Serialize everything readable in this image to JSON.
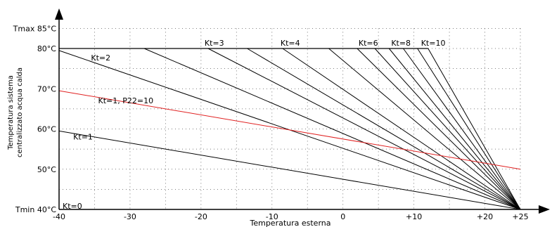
{
  "chart_data": {
    "type": "line",
    "xlabel": "Temperatura esterna",
    "ylabel_lines": [
      "Temperatura sistema",
      "centralizzato acqua calda"
    ],
    "xlim": [
      -40,
      25
    ],
    "ylim": [
      40,
      85
    ],
    "grid": true,
    "x_ticks": [
      {
        "value": -40,
        "label": "-40"
      },
      {
        "value": -30,
        "label": "-30"
      },
      {
        "value": -20,
        "label": "-20"
      },
      {
        "value": -10,
        "label": "-10"
      },
      {
        "value": 0,
        "label": "0"
      },
      {
        "value": 10,
        "label": "+10"
      },
      {
        "value": 20,
        "label": "+20"
      },
      {
        "value": 25,
        "label": "+25"
      }
    ],
    "y_ticks": [
      {
        "value": 40,
        "label": "Tmin 40°C"
      },
      {
        "value": 50,
        "label": "50°C"
      },
      {
        "value": 60,
        "label": "60°C"
      },
      {
        "value": 70,
        "label": "70°C"
      },
      {
        "value": 80,
        "label": "80°C"
      },
      {
        "value": 85,
        "label": "Tmax 85°C"
      }
    ],
    "max_line": {
      "value": 80,
      "x_from": -40,
      "x_to": 12
    },
    "convergence_point": {
      "x": 25,
      "y": 40
    },
    "lines": [
      {
        "kt": 1,
        "x_start": -40,
        "y_start": 59.5,
        "color": "#000000"
      },
      {
        "kt": 2,
        "x_start": -40,
        "y_start": 79.5,
        "color": "#000000"
      },
      {
        "kt": 2.5,
        "x_start": -28,
        "y_start": 80,
        "color": "#000000"
      },
      {
        "kt": 3,
        "x_start": -19,
        "y_start": 80,
        "color": "#000000"
      },
      {
        "kt": 3.5,
        "x_start": -13.5,
        "y_start": 80,
        "color": "#000000"
      },
      {
        "kt": 4,
        "x_start": -8.5,
        "y_start": 80,
        "color": "#000000"
      },
      {
        "kt": 5,
        "x_start": -2,
        "y_start": 80,
        "color": "#000000"
      },
      {
        "kt": 6,
        "x_start": 2,
        "y_start": 80,
        "color": "#000000"
      },
      {
        "kt": 7,
        "x_start": 4.5,
        "y_start": 80,
        "color": "#000000"
      },
      {
        "kt": 8,
        "x_start": 6.5,
        "y_start": 80,
        "color": "#000000"
      },
      {
        "kt": 9,
        "x_start": 8.5,
        "y_start": 80,
        "color": "#000000"
      },
      {
        "kt": 10,
        "x_start": 10.5,
        "y_start": 80,
        "color": "#000000"
      },
      {
        "kt": 11,
        "x_start": 12,
        "y_start": 80,
        "color": "#000000"
      }
    ],
    "red_line": {
      "x_start": -40,
      "y_start": 69.5,
      "x_end": 25,
      "y_end": 50,
      "color": "#e02020"
    },
    "labels": [
      {
        "text": "Kt=0",
        "x": -39.5,
        "y": 40.2,
        "anchor": "start",
        "color": "#000000"
      },
      {
        "text": "Kt=1",
        "x": -38,
        "y": 57.4,
        "anchor": "start",
        "color": "#000000"
      },
      {
        "text": "Kt=2",
        "x": -35.5,
        "y": 77,
        "anchor": "start",
        "color": "#000000"
      },
      {
        "text": "Kt=1, P22=10",
        "x": -34.5,
        "y": 66.4,
        "anchor": "start",
        "color": "#e02020"
      },
      {
        "text": "Kt=3",
        "x": -19.5,
        "y": 80.7,
        "anchor": "start",
        "color": "#000000"
      },
      {
        "text": "Kt=4",
        "x": -8.8,
        "y": 80.7,
        "anchor": "start",
        "color": "#000000"
      },
      {
        "text": "Kt=6",
        "x": 2.2,
        "y": 80.7,
        "anchor": "start",
        "color": "#000000"
      },
      {
        "text": "Kt=8",
        "x": 6.8,
        "y": 80.7,
        "anchor": "start",
        "color": "#000000"
      },
      {
        "text": "Kt=10",
        "x": 11,
        "y": 80.7,
        "anchor": "start",
        "color": "#000000"
      }
    ]
  }
}
